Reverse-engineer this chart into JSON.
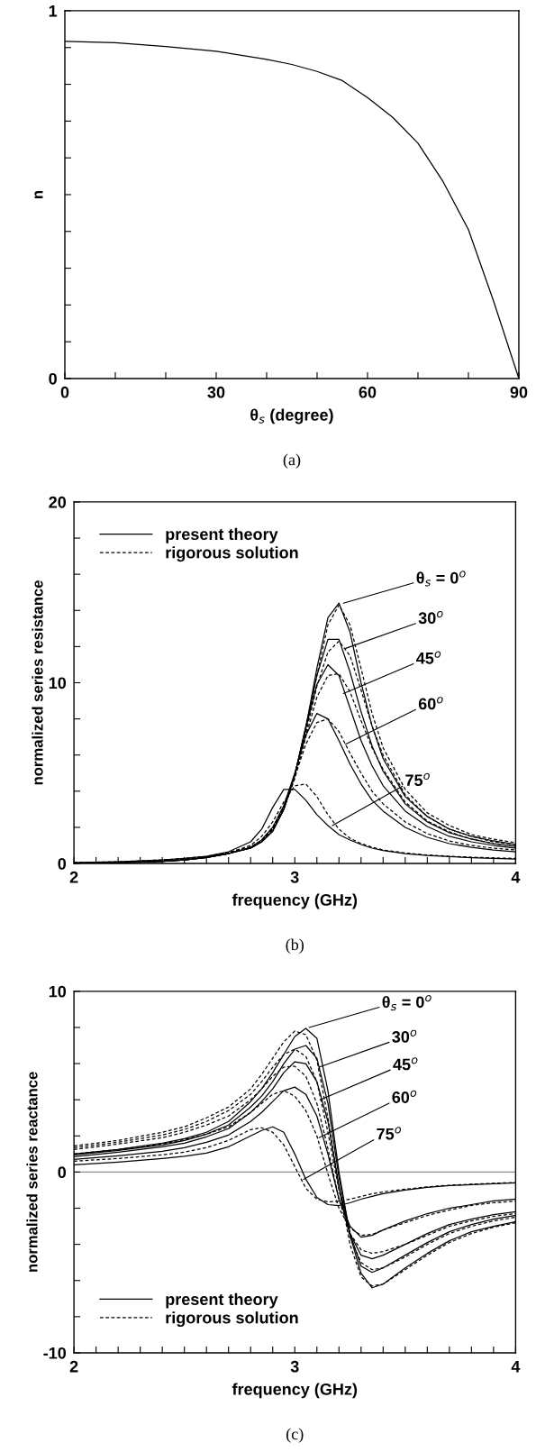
{
  "chart_data": [
    {
      "type": "line",
      "xlabel": "θ$_{s}$ (degree)",
      "ylabel": "n",
      "xlim": [
        0,
        90
      ],
      "ylim": [
        0,
        1
      ],
      "xticks": [
        0,
        {
          "value": 10,
          "label": null
        },
        {
          "value": 20,
          "label": null
        },
        30,
        {
          "value": 40,
          "label": null
        },
        {
          "value": 50,
          "label": null
        },
        60,
        {
          "value": 70,
          "label": null
        },
        {
          "value": 80,
          "label": null
        },
        90
      ],
      "yticks": [
        0,
        {
          "value": 0.1,
          "label": null
        },
        {
          "value": 0.2,
          "label": null
        },
        {
          "value": 0.3,
          "label": null
        },
        {
          "value": 0.4,
          "label": null
        },
        {
          "value": 0.5,
          "label": null
        },
        {
          "value": 0.6,
          "label": null
        },
        {
          "value": 0.7,
          "label": null
        },
        {
          "value": 0.8,
          "label": null
        },
        {
          "value": 0.9,
          "label": null
        },
        1
      ],
      "x": [
        0,
        10,
        20,
        30,
        40,
        45,
        50,
        55,
        60,
        65,
        70,
        75,
        80,
        85,
        90
      ],
      "series": [
        {
          "color": "#000000",
          "line_style": "solid",
          "values": [
            0.917,
            0.913,
            0.903,
            0.89,
            0.868,
            0.854,
            0.835,
            0.81,
            0.764,
            0.71,
            0.64,
            0.535,
            0.405,
            0.21,
            0.0
          ]
        }
      ],
      "annotations": [
        "(a)"
      ],
      "grid": false,
      "legend": false
    },
    {
      "type": "line",
      "xlabel": "frequency (GHz)",
      "ylabel": "normalized series resistance",
      "xlim": [
        2,
        4
      ],
      "ylim": [
        0,
        20
      ],
      "xticks": [
        2,
        {
          "value": 2.1,
          "label": null
        },
        {
          "value": 2.2,
          "label": null
        },
        {
          "value": 2.3,
          "label": null
        },
        {
          "value": 2.4,
          "label": null
        },
        {
          "value": 2.5,
          "label": null
        },
        {
          "value": 2.6,
          "label": null
        },
        {
          "value": 2.7,
          "label": null
        },
        {
          "value": 2.8,
          "label": null
        },
        {
          "value": 2.9,
          "label": null
        },
        3,
        {
          "value": 3.1,
          "label": null
        },
        {
          "value": 3.2,
          "label": null
        },
        {
          "value": 3.3,
          "label": null
        },
        {
          "value": 3.4,
          "label": null
        },
        {
          "value": 3.5,
          "label": null
        },
        {
          "value": 3.6,
          "label": null
        },
        {
          "value": 3.7,
          "label": null
        },
        {
          "value": 3.8,
          "label": null
        },
        {
          "value": 3.9,
          "label": null
        },
        4
      ],
      "yticks": [
        0,
        {
          "value": 2,
          "label": null
        },
        {
          "value": 4,
          "label": null
        },
        {
          "value": 6,
          "label": null
        },
        {
          "value": 8,
          "label": null
        },
        10,
        {
          "value": 12,
          "label": null
        },
        {
          "value": 14,
          "label": null
        },
        {
          "value": 16,
          "label": null
        },
        {
          "value": 18,
          "label": null
        },
        20
      ],
      "x": [
        2.0,
        2.2,
        2.4,
        2.5,
        2.6,
        2.7,
        2.8,
        2.85,
        2.9,
        2.95,
        3.0,
        3.05,
        3.1,
        3.15,
        3.2,
        3.25,
        3.3,
        3.35,
        3.4,
        3.5,
        3.6,
        3.7,
        3.8,
        3.9,
        4.0
      ],
      "series": [
        {
          "name": "present theory",
          "color": "#000000",
          "line_style": "solid",
          "values": [
            0.02,
            0.05,
            0.12,
            0.2,
            0.33,
            0.55,
            0.85,
            1.2,
            1.8,
            3.0,
            4.9,
            7.5,
            10.8,
            13.6,
            14.4,
            12.8,
            10.0,
            7.6,
            5.8,
            3.7,
            2.6,
            1.9,
            1.5,
            1.25,
            1.05
          ]
        },
        {
          "name": "rigorous solution",
          "color": "#000000",
          "line_style": "dashed",
          "values": [
            0.03,
            0.06,
            0.14,
            0.22,
            0.36,
            0.6,
            0.9,
            1.25,
            1.9,
            3.1,
            4.9,
            7.3,
            10.4,
            13.2,
            14.3,
            13.2,
            10.8,
            8.3,
            6.4,
            4.1,
            2.8,
            2.1,
            1.6,
            1.35,
            1.15
          ]
        },
        {
          "color": "#000000",
          "line_style": "solid",
          "values": [
            0.02,
            0.05,
            0.12,
            0.2,
            0.33,
            0.55,
            0.85,
            1.2,
            1.8,
            3.0,
            4.9,
            7.6,
            10.4,
            12.4,
            12.4,
            10.6,
            8.4,
            6.5,
            5.1,
            3.3,
            2.3,
            1.7,
            1.35,
            1.1,
            0.95
          ]
        },
        {
          "color": "#000000",
          "line_style": "dashed",
          "values": [
            0.03,
            0.06,
            0.14,
            0.22,
            0.36,
            0.6,
            0.9,
            1.25,
            1.9,
            3.0,
            4.8,
            7.2,
            9.8,
            11.7,
            12.3,
            11.5,
            9.6,
            7.6,
            6.0,
            3.8,
            2.6,
            1.9,
            1.5,
            1.2,
            1.05
          ]
        },
        {
          "color": "#000000",
          "line_style": "solid",
          "values": [
            0.02,
            0.05,
            0.12,
            0.2,
            0.33,
            0.55,
            0.85,
            1.2,
            1.8,
            3.0,
            4.9,
            7.5,
            9.9,
            11.0,
            10.4,
            8.6,
            6.8,
            5.4,
            4.3,
            2.9,
            2.05,
            1.5,
            1.2,
            1.0,
            0.85
          ]
        },
        {
          "color": "#000000",
          "line_style": "dashed",
          "values": [
            0.03,
            0.06,
            0.14,
            0.22,
            0.36,
            0.6,
            0.9,
            1.25,
            1.9,
            3.0,
            4.7,
            7.0,
            9.2,
            10.4,
            10.5,
            9.5,
            7.9,
            6.4,
            5.2,
            3.4,
            2.35,
            1.75,
            1.35,
            1.1,
            0.95
          ]
        },
        {
          "color": "#000000",
          "line_style": "solid",
          "values": [
            0.02,
            0.05,
            0.12,
            0.2,
            0.33,
            0.55,
            0.9,
            1.3,
            2.0,
            3.2,
            5.0,
            7.1,
            8.3,
            8.0,
            6.8,
            5.5,
            4.4,
            3.5,
            2.9,
            2.0,
            1.45,
            1.1,
            0.9,
            0.75,
            0.65
          ]
        },
        {
          "color": "#000000",
          "line_style": "dashed",
          "values": [
            0.03,
            0.06,
            0.14,
            0.22,
            0.36,
            0.6,
            0.9,
            1.3,
            2.0,
            3.1,
            4.8,
            6.6,
            7.8,
            8.0,
            7.3,
            6.1,
            5.0,
            4.0,
            3.3,
            2.3,
            1.65,
            1.25,
            1.0,
            0.85,
            0.75
          ]
        },
        {
          "color": "#000000",
          "line_style": "solid",
          "values": [
            0.05,
            0.1,
            0.2,
            0.28,
            0.4,
            0.65,
            1.2,
            1.9,
            3.1,
            4.1,
            4.1,
            3.5,
            2.7,
            2.1,
            1.6,
            1.3,
            1.05,
            0.85,
            0.72,
            0.55,
            0.45,
            0.38,
            0.32,
            0.28,
            0.25
          ]
        },
        {
          "color": "#000000",
          "line_style": "dashed",
          "values": [
            0.05,
            0.1,
            0.2,
            0.28,
            0.4,
            0.6,
            1.0,
            1.5,
            2.3,
            3.4,
            4.3,
            4.4,
            3.7,
            2.7,
            1.9,
            1.4,
            1.1,
            0.9,
            0.75,
            0.58,
            0.47,
            0.4,
            0.35,
            0.31,
            0.28
          ]
        }
      ],
      "annotations": [
        {
          "text": "θ$_{s}$ = 0$^{o}$",
          "x": 3.22,
          "y": 14.4
        },
        {
          "text": "30$^{o}$",
          "x": 3.23,
          "y": 11.9
        },
        {
          "text": "45$^{o}$",
          "x": 3.22,
          "y": 9.4
        },
        {
          "text": "60$^{o}$",
          "x": 3.23,
          "y": 6.6
        },
        {
          "text": "75$^{o}$",
          "x": 3.17,
          "y": 2.1
        },
        "(b)"
      ],
      "grid": false,
      "legend": "top left"
    },
    {
      "type": "line",
      "xlabel": "frequency (GHz)",
      "ylabel": "normalized series reactance",
      "xlim": [
        2,
        4
      ],
      "ylim": [
        -10,
        10
      ],
      "xticks": [
        2,
        {
          "value": 2.1,
          "label": null
        },
        {
          "value": 2.2,
          "label": null
        },
        {
          "value": 2.3,
          "label": null
        },
        {
          "value": 2.4,
          "label": null
        },
        {
          "value": 2.5,
          "label": null
        },
        {
          "value": 2.6,
          "label": null
        },
        {
          "value": 2.7,
          "label": null
        },
        {
          "value": 2.8,
          "label": null
        },
        {
          "value": 2.9,
          "label": null
        },
        3,
        {
          "value": 3.1,
          "label": null
        },
        {
          "value": 3.2,
          "label": null
        },
        {
          "value": 3.3,
          "label": null
        },
        {
          "value": 3.4,
          "label": null
        },
        {
          "value": 3.5,
          "label": null
        },
        {
          "value": 3.6,
          "label": null
        },
        {
          "value": 3.7,
          "label": null
        },
        {
          "value": 3.8,
          "label": null
        },
        {
          "value": 3.9,
          "label": null
        },
        4
      ],
      "yticks": [
        -10,
        {
          "value": -8,
          "label": null
        },
        {
          "value": -6,
          "label": null
        },
        {
          "value": -4,
          "label": null
        },
        {
          "value": -2,
          "label": null
        },
        0,
        {
          "value": 2,
          "label": null
        },
        {
          "value": 4,
          "label": null
        },
        {
          "value": 6,
          "label": null
        },
        {
          "value": 8,
          "label": null
        },
        10
      ],
      "x": [
        2.0,
        2.2,
        2.4,
        2.5,
        2.6,
        2.7,
        2.8,
        2.85,
        2.9,
        2.95,
        3.0,
        3.05,
        3.1,
        3.15,
        3.2,
        3.25,
        3.3,
        3.35,
        3.4,
        3.5,
        3.6,
        3.7,
        3.8,
        3.9,
        4.0
      ],
      "ref_lines": [
        {
          "axis": "y",
          "value": 0,
          "color": "#909090"
        }
      ],
      "series": [
        {
          "name": "present theory",
          "color": "#000000",
          "line_style": "solid",
          "values": [
            1.0,
            1.25,
            1.6,
            1.85,
            2.2,
            2.8,
            3.9,
            4.6,
            5.5,
            6.5,
            7.5,
            7.95,
            7.4,
            4.5,
            0.0,
            -3.5,
            -5.6,
            -6.4,
            -6.2,
            -5.3,
            -4.5,
            -3.8,
            -3.3,
            -3.0,
            -2.75
          ]
        },
        {
          "name": "rigorous solution",
          "color": "#000000",
          "line_style": "dashed",
          "values": [
            1.45,
            1.75,
            2.2,
            2.5,
            3.0,
            3.6,
            4.6,
            5.4,
            6.3,
            7.2,
            7.8,
            7.6,
            6.2,
            3.0,
            -0.8,
            -4.0,
            -5.8,
            -6.3,
            -6.2,
            -5.4,
            -4.6,
            -3.9,
            -3.4,
            -3.05,
            -2.8
          ]
        },
        {
          "color": "#000000",
          "line_style": "solid",
          "values": [
            0.95,
            1.2,
            1.5,
            1.75,
            2.1,
            2.6,
            3.6,
            4.2,
            5.0,
            6.0,
            6.8,
            7.0,
            6.3,
            3.8,
            -0.3,
            -3.4,
            -5.2,
            -5.55,
            -5.3,
            -4.6,
            -3.9,
            -3.3,
            -2.9,
            -2.6,
            -2.4
          ]
        },
        {
          "color": "#000000",
          "line_style": "dashed",
          "values": [
            1.35,
            1.65,
            2.05,
            2.35,
            2.8,
            3.4,
            4.3,
            5.0,
            5.8,
            6.5,
            6.8,
            6.4,
            5.0,
            2.2,
            -1.0,
            -3.6,
            -5.0,
            -5.4,
            -5.3,
            -4.7,
            -4.0,
            -3.4,
            -3.0,
            -2.7,
            -2.5
          ]
        },
        {
          "color": "#000000",
          "line_style": "solid",
          "values": [
            0.85,
            1.1,
            1.4,
            1.6,
            1.95,
            2.4,
            3.3,
            3.9,
            4.6,
            5.5,
            6.1,
            6.0,
            5.0,
            2.8,
            -0.8,
            -3.4,
            -4.6,
            -4.8,
            -4.6,
            -4.0,
            -3.4,
            -2.9,
            -2.6,
            -2.35,
            -2.2
          ]
        },
        {
          "color": "#000000",
          "line_style": "dashed",
          "values": [
            1.25,
            1.55,
            1.9,
            2.2,
            2.6,
            3.1,
            4.0,
            4.6,
            5.3,
            5.8,
            5.85,
            5.3,
            3.8,
            1.3,
            -1.5,
            -3.4,
            -4.3,
            -4.5,
            -4.4,
            -4.0,
            -3.5,
            -3.0,
            -2.7,
            -2.45,
            -2.3
          ]
        },
        {
          "color": "#000000",
          "line_style": "solid",
          "values": [
            0.7,
            0.9,
            1.15,
            1.35,
            1.65,
            2.05,
            2.8,
            3.3,
            3.9,
            4.5,
            4.7,
            4.3,
            3.1,
            1.0,
            -1.5,
            -3.0,
            -3.6,
            -3.5,
            -3.2,
            -2.7,
            -2.3,
            -2.0,
            -1.8,
            -1.6,
            -1.5
          ]
        },
        {
          "color": "#000000",
          "line_style": "dashed",
          "values": [
            1.0,
            1.25,
            1.55,
            1.8,
            2.1,
            2.5,
            3.3,
            3.8,
            4.3,
            4.5,
            4.2,
            3.4,
            2.0,
            -0.1,
            -2.0,
            -3.1,
            -3.5,
            -3.45,
            -3.2,
            -2.8,
            -2.4,
            -2.1,
            -1.85,
            -1.7,
            -1.6
          ]
        },
        {
          "color": "#000000",
          "line_style": "solid",
          "values": [
            0.4,
            0.55,
            0.75,
            0.87,
            1.05,
            1.4,
            2.0,
            2.3,
            2.5,
            2.2,
            1.0,
            -0.4,
            -1.4,
            -1.8,
            -1.85,
            -1.7,
            -1.5,
            -1.35,
            -1.2,
            -1.0,
            -0.85,
            -0.75,
            -0.7,
            -0.65,
            -0.6
          ]
        },
        {
          "color": "#000000",
          "line_style": "dashed",
          "values": [
            0.6,
            0.75,
            0.95,
            1.1,
            1.35,
            1.75,
            2.35,
            2.45,
            2.2,
            1.5,
            0.3,
            -0.9,
            -1.5,
            -1.65,
            -1.6,
            -1.5,
            -1.35,
            -1.2,
            -1.1,
            -0.95,
            -0.82,
            -0.73,
            -0.67,
            -0.62,
            -0.58
          ]
        }
      ],
      "annotations": [
        {
          "text": "θ$_{s}$ = 0$^{o}$",
          "x": 3.065,
          "y": 8.0
        },
        {
          "text": "30$^{o}$",
          "x": 3.11,
          "y": 5.8
        },
        {
          "text": "45$^{o}$",
          "x": 3.115,
          "y": 4.0
        },
        {
          "text": "60$^{o}$",
          "x": 3.11,
          "y": 1.9
        },
        {
          "text": "75$^{o}$",
          "x": 3.04,
          "y": -0.4
        },
        "(c)"
      ],
      "grid": false,
      "legend": "bottom left"
    }
  ]
}
